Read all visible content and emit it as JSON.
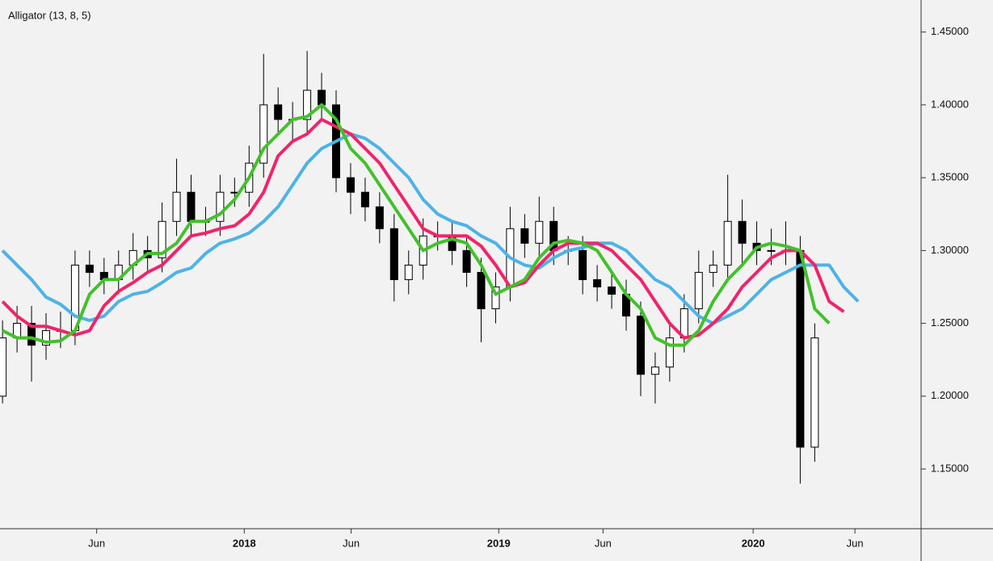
{
  "chart_data": {
    "type": "candlestick",
    "title": "Alligator (13, 8, 5)",
    "x": [
      2017.05,
      2017.107,
      2017.164,
      2017.221,
      2017.278,
      2017.335,
      2017.392,
      2017.449,
      2017.506,
      2017.563,
      2017.62,
      2017.677,
      2017.734,
      2017.791,
      2017.848,
      2017.905,
      2017.962,
      2018.019,
      2018.076,
      2018.133,
      2018.19,
      2018.247,
      2018.304,
      2018.361,
      2018.418,
      2018.475,
      2018.532,
      2018.589,
      2018.646,
      2018.703,
      2018.76,
      2018.817,
      2018.874,
      2018.931,
      2018.988,
      2019.045,
      2019.102,
      2019.159,
      2019.216,
      2019.273,
      2019.33,
      2019.387,
      2019.444,
      2019.501,
      2019.558,
      2019.615,
      2019.672,
      2019.729,
      2019.786,
      2019.843,
      2019.9,
      2019.957,
      2020.014,
      2020.071,
      2020.128,
      2020.185,
      2020.242,
      2020.299,
      2020.356,
      2020.413
    ],
    "open": [
      1.2,
      1.24,
      1.25,
      1.235,
      1.245,
      1.245,
      1.29,
      1.285,
      1.28,
      1.29,
      1.3,
      1.295,
      1.32,
      1.34,
      1.32,
      1.32,
      1.34,
      1.34,
      1.36,
      1.4,
      1.39,
      1.39,
      1.41,
      1.4,
      1.35,
      1.34,
      1.33,
      1.315,
      1.28,
      1.29,
      1.31,
      1.31,
      1.3,
      1.285,
      1.26,
      1.275,
      1.315,
      1.305,
      1.32,
      1.3,
      1.3,
      1.28,
      1.275,
      1.27,
      1.255,
      1.215,
      1.22,
      1.24,
      1.26,
      1.285,
      1.29,
      1.32,
      1.305,
      1.3,
      1.3,
      1.3,
      1.165,
      null,
      null,
      null
    ],
    "high": [
      1.252,
      1.262,
      1.262,
      1.257,
      1.258,
      1.3,
      1.3,
      1.295,
      1.3,
      1.312,
      1.31,
      1.333,
      1.363,
      1.352,
      1.33,
      1.352,
      1.35,
      1.372,
      1.435,
      1.412,
      1.402,
      1.437,
      1.422,
      1.41,
      1.36,
      1.35,
      1.34,
      1.325,
      1.3,
      1.322,
      1.32,
      1.32,
      1.31,
      1.295,
      1.285,
      1.33,
      1.325,
      1.337,
      1.33,
      1.31,
      1.31,
      1.29,
      1.285,
      1.28,
      1.265,
      1.23,
      1.25,
      1.27,
      1.3,
      1.3,
      1.352,
      1.335,
      1.32,
      1.315,
      1.32,
      1.31,
      1.25,
      null,
      null,
      null
    ],
    "low": [
      1.195,
      1.23,
      1.21,
      1.225,
      1.233,
      1.235,
      1.275,
      1.27,
      1.27,
      1.28,
      1.285,
      1.285,
      1.31,
      1.31,
      1.31,
      1.31,
      1.33,
      1.33,
      1.35,
      1.38,
      1.375,
      1.38,
      1.39,
      1.34,
      1.325,
      1.32,
      1.305,
      1.265,
      1.27,
      1.28,
      1.3,
      1.29,
      1.275,
      1.237,
      1.25,
      1.265,
      1.295,
      1.295,
      1.29,
      1.29,
      1.27,
      1.265,
      1.26,
      1.245,
      1.2,
      1.195,
      1.21,
      1.23,
      1.25,
      1.275,
      1.28,
      1.29,
      1.29,
      1.29,
      1.29,
      1.14,
      1.155,
      null,
      null,
      null
    ],
    "close": [
      1.24,
      1.25,
      1.235,
      1.245,
      1.245,
      1.29,
      1.285,
      1.28,
      1.29,
      1.3,
      1.295,
      1.32,
      1.34,
      1.32,
      1.32,
      1.34,
      1.34,
      1.36,
      1.4,
      1.39,
      1.39,
      1.41,
      1.4,
      1.35,
      1.34,
      1.33,
      1.315,
      1.28,
      1.29,
      1.31,
      1.31,
      1.3,
      1.285,
      1.26,
      1.275,
      1.315,
      1.305,
      1.32,
      1.3,
      1.3,
      1.28,
      1.275,
      1.27,
      1.255,
      1.215,
      1.22,
      1.24,
      1.26,
      1.285,
      1.29,
      1.32,
      1.305,
      1.3,
      1.3,
      1.3,
      1.165,
      1.24,
      null,
      null,
      null
    ],
    "lines": [
      {
        "color": "#4db3e6",
        "values": [
          1.3,
          1.29,
          1.28,
          1.268,
          1.263,
          1.255,
          1.252,
          1.255,
          1.265,
          1.27,
          1.272,
          1.278,
          1.285,
          1.288,
          1.298,
          1.305,
          1.308,
          1.312,
          1.32,
          1.33,
          1.345,
          1.36,
          1.37,
          1.375,
          1.38,
          1.377,
          1.37,
          1.36,
          1.35,
          1.335,
          1.325,
          1.32,
          1.317,
          1.31,
          1.305,
          1.295,
          1.29,
          1.288,
          1.295,
          1.3,
          1.302,
          1.305,
          1.305,
          1.3,
          1.29,
          1.28,
          1.275,
          1.265,
          1.255,
          1.25,
          1.255,
          1.26,
          1.27,
          1.28,
          1.285,
          1.29,
          1.29,
          1.29,
          1.275,
          1.265
        ]
      },
      {
        "color": "#f0246a",
        "values": [
          1.265,
          1.255,
          1.248,
          1.248,
          1.245,
          1.242,
          1.245,
          1.262,
          1.272,
          1.278,
          1.285,
          1.29,
          1.3,
          1.31,
          1.312,
          1.315,
          1.317,
          1.325,
          1.34,
          1.365,
          1.375,
          1.38,
          1.39,
          1.385,
          1.38,
          1.37,
          1.36,
          1.345,
          1.33,
          1.315,
          1.31,
          1.31,
          1.31,
          1.303,
          1.29,
          1.275,
          1.278,
          1.29,
          1.3,
          1.305,
          1.305,
          1.305,
          1.3,
          1.29,
          1.28,
          1.265,
          1.25,
          1.24,
          1.242,
          1.25,
          1.26,
          1.275,
          1.285,
          1.295,
          1.3,
          1.3,
          1.29,
          1.265,
          1.258,
          null
        ]
      },
      {
        "color": "#42c12b",
        "values": [
          1.245,
          1.24,
          1.24,
          1.237,
          1.238,
          1.245,
          1.27,
          1.28,
          1.28,
          1.29,
          1.298,
          1.298,
          1.305,
          1.32,
          1.32,
          1.325,
          1.335,
          1.35,
          1.37,
          1.38,
          1.39,
          1.392,
          1.4,
          1.39,
          1.37,
          1.36,
          1.345,
          1.33,
          1.315,
          1.3,
          1.305,
          1.308,
          1.305,
          1.29,
          1.27,
          1.275,
          1.28,
          1.295,
          1.305,
          1.307,
          1.305,
          1.3,
          1.285,
          1.27,
          1.26,
          1.24,
          1.235,
          1.235,
          1.245,
          1.265,
          1.28,
          1.29,
          1.302,
          1.305,
          1.303,
          1.3,
          1.26,
          1.25,
          null,
          null
        ]
      }
    ],
    "xlim": [
      2017.04,
      2020.66
    ],
    "ylim": [
      1.109,
      1.472
    ],
    "xticks": [
      {
        "value": 2017.42,
        "label": "Jun"
      },
      2018,
      {
        "value": 2018.42,
        "label": "Jun"
      },
      2019,
      {
        "value": 2019.41,
        "label": "Jun"
      },
      2020,
      {
        "value": 2020.4,
        "label": "Jun"
      }
    ],
    "yticks": [
      {
        "value": 1.15,
        "label": "1.15000"
      },
      {
        "value": 1.2,
        "label": "1.20000"
      },
      {
        "value": 1.25,
        "label": "1.25000"
      },
      {
        "value": 1.3,
        "label": "1.30000"
      },
      {
        "value": 1.35,
        "label": "1.35000"
      },
      {
        "value": 1.4,
        "label": "1.40000"
      },
      {
        "value": 1.45,
        "label": "1.45000"
      }
    ]
  }
}
